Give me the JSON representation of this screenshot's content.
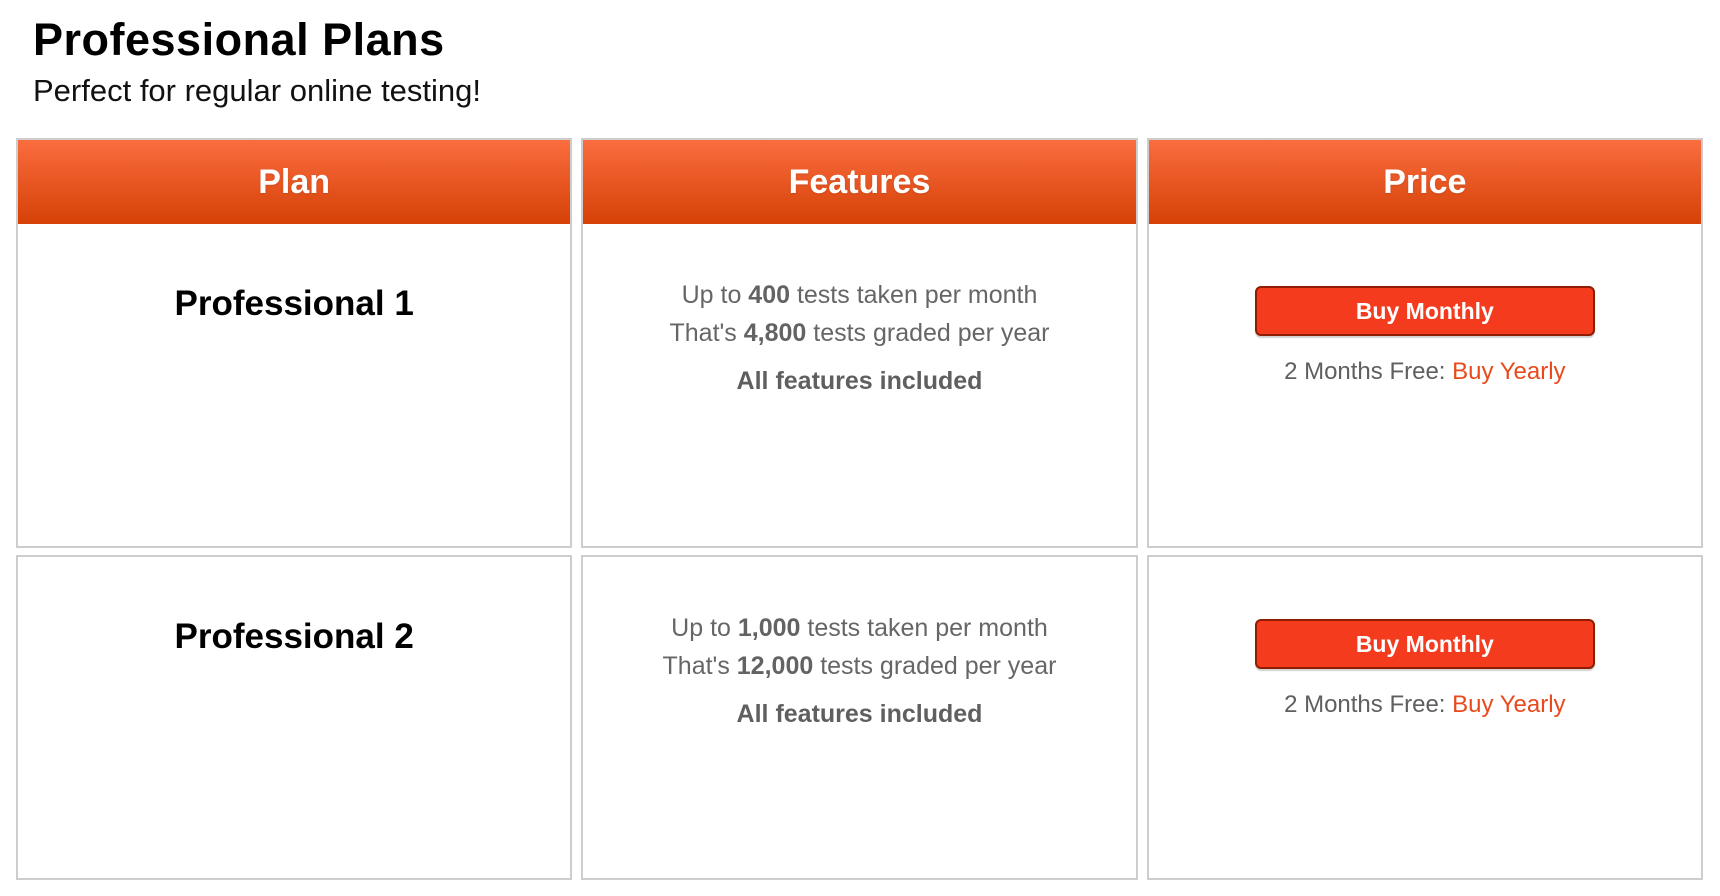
{
  "page": {
    "title": "Professional Plans",
    "subtitle": "Perfect for regular online testing!"
  },
  "table": {
    "columns": [
      "Plan",
      "Features",
      "Price"
    ],
    "rows": [
      {
        "plan_name": "Professional 1",
        "features": {
          "line1_prefix": "Up to ",
          "line1_bold": "400",
          "line1_suffix": " tests taken per month",
          "line2_prefix": "That's ",
          "line2_bold": "4,800",
          "line2_suffix": " tests graded per year",
          "line3": "All features included"
        },
        "price": {
          "buy_monthly_label": "Buy Monthly",
          "promo_prefix": "2 Months Free: ",
          "buy_yearly_label": "Buy Yearly"
        }
      },
      {
        "plan_name": "Professional 2",
        "features": {
          "line1_prefix": "Up to ",
          "line1_bold": "1,000",
          "line1_suffix": " tests taken per month",
          "line2_prefix": "That's ",
          "line2_bold": "12,000",
          "line2_suffix": " tests graded per year",
          "line3": "All features included"
        },
        "price": {
          "buy_monthly_label": "Buy Monthly",
          "promo_prefix": "2 Months Free: ",
          "buy_yearly_label": "Buy Yearly"
        }
      }
    ],
    "colors": {
      "header_gradient_top": "#fb6d3f",
      "header_gradient_bottom": "#d54107",
      "buy_monthly_bg": "#f53b1d",
      "buy_monthly_border": "#8e1d02",
      "buy_yearly_link": "#e94a1d",
      "feature_text": "#666666",
      "cell_border": "#cdcdcd"
    }
  }
}
